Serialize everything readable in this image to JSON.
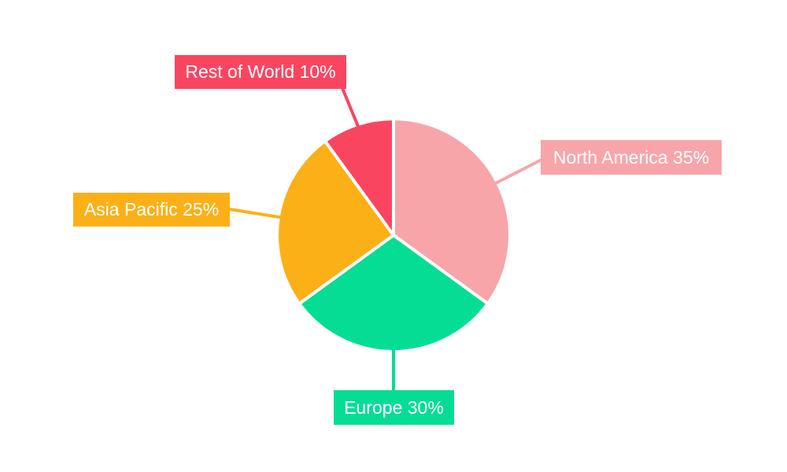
{
  "chart_data": {
    "type": "pie",
    "title": "",
    "categories": [
      "North America",
      "Europe",
      "Asia Pacific",
      "Rest of World"
    ],
    "values": [
      35,
      30,
      25,
      10
    ],
    "unit": "%",
    "start_angle_deg": 0,
    "direction": "clockwise",
    "legend": "none",
    "label_style": "callout-boxes-with-leader-lines",
    "label_text_color": "#FFFFFF",
    "slice_border_color": "#FFFFFF",
    "background_color": "#FFFFFF",
    "slices": [
      {
        "name": "North America",
        "value": 35,
        "display": "North America 35%",
        "color": "#F8A5AA"
      },
      {
        "name": "Europe",
        "value": 30,
        "display": "Europe 30%",
        "color": "#05DD94"
      },
      {
        "name": "Asia Pacific",
        "value": 25,
        "display": "Asia Pacific 25%",
        "color": "#FCB017"
      },
      {
        "name": "Rest of World",
        "value": 10,
        "display": "Rest of World 10%",
        "color": "#FA4560"
      }
    ]
  }
}
